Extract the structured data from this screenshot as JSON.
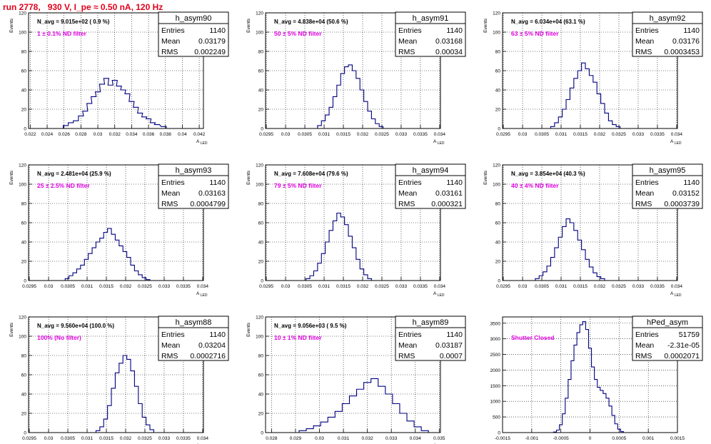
{
  "page_title": "run 2778,   930 V, I_pe ≈ 0.50 nA, 120 Hz",
  "colors": {
    "title": "#e0001b",
    "annotation": "#e000e0",
    "hist_line": "#000080",
    "grid": "#000000",
    "frame": "#000000"
  },
  "stat_labels": {
    "entries": "Entries",
    "mean": "Mean",
    "rms": "RMS"
  },
  "chart_data": [
    {
      "type": "histogram",
      "name": "h_asym90",
      "ylabel": "Events",
      "xlabel": "A_LED",
      "xlim": [
        0.0218,
        0.0425
      ],
      "ylim": [
        0,
        120
      ],
      "grid": true,
      "xticks": [
        "0.022",
        "0.024",
        "0.026",
        "0.028",
        "0.03",
        "0.032",
        "0.034",
        "0.036",
        "0.038",
        "0.04",
        "0.042"
      ],
      "yticks": [
        "0",
        "20",
        "40",
        "60",
        "80",
        "100",
        "120"
      ],
      "navg": "N_avg = 9.015e+02 ( 0.9 %)",
      "filter": "1 ± 0.1% ND filter",
      "stats": {
        "entries": "1140",
        "mean": "0.03179",
        "rms": "0.002249"
      },
      "bins": [
        {
          "x": 0.0262,
          "y": 3
        },
        {
          "x": 0.0268,
          "y": 6
        },
        {
          "x": 0.0274,
          "y": 8
        },
        {
          "x": 0.028,
          "y": 13
        },
        {
          "x": 0.0285,
          "y": 18
        },
        {
          "x": 0.029,
          "y": 26
        },
        {
          "x": 0.0295,
          "y": 33
        },
        {
          "x": 0.03,
          "y": 38
        },
        {
          "x": 0.0305,
          "y": 46
        },
        {
          "x": 0.031,
          "y": 52
        },
        {
          "x": 0.0315,
          "y": 45
        },
        {
          "x": 0.032,
          "y": 50
        },
        {
          "x": 0.0325,
          "y": 44
        },
        {
          "x": 0.033,
          "y": 40
        },
        {
          "x": 0.0335,
          "y": 36
        },
        {
          "x": 0.034,
          "y": 28
        },
        {
          "x": 0.0345,
          "y": 22
        },
        {
          "x": 0.035,
          "y": 16
        },
        {
          "x": 0.0355,
          "y": 12
        },
        {
          "x": 0.036,
          "y": 10
        },
        {
          "x": 0.0365,
          "y": 6
        },
        {
          "x": 0.037,
          "y": 4
        },
        {
          "x": 0.0378,
          "y": 2
        }
      ]
    },
    {
      "type": "histogram",
      "name": "h_asym91",
      "ylabel": "Events",
      "xlabel": "A_LED",
      "xlim": [
        0.02948,
        0.03402
      ],
      "ylim": [
        0,
        120
      ],
      "grid": true,
      "xticks": [
        "0.0295",
        "0.03",
        "0.0305",
        "0.031",
        "0.0315",
        "0.032",
        "0.0325",
        "0.033",
        "0.0335",
        "0.034"
      ],
      "yticks": [
        "0",
        "20",
        "40",
        "60",
        "80",
        "100",
        "120"
      ],
      "navg": "N_avg = 4.838e+04 (50.6 %)",
      "filter": "50 ± 5% ND filter",
      "stats": {
        "entries": "1140",
        "mean": "0.03168",
        "rms": "0.00034"
      },
      "bins": [
        {
          "x": 0.03088,
          "y": 3
        },
        {
          "x": 0.03098,
          "y": 8
        },
        {
          "x": 0.03108,
          "y": 14
        },
        {
          "x": 0.03118,
          "y": 22
        },
        {
          "x": 0.03128,
          "y": 33
        },
        {
          "x": 0.03138,
          "y": 45
        },
        {
          "x": 0.03148,
          "y": 57
        },
        {
          "x": 0.03158,
          "y": 64
        },
        {
          "x": 0.03168,
          "y": 66
        },
        {
          "x": 0.03178,
          "y": 60
        },
        {
          "x": 0.03188,
          "y": 52
        },
        {
          "x": 0.03198,
          "y": 40
        },
        {
          "x": 0.03208,
          "y": 28
        },
        {
          "x": 0.03218,
          "y": 18
        },
        {
          "x": 0.03228,
          "y": 10
        },
        {
          "x": 0.03238,
          "y": 5
        },
        {
          "x": 0.03248,
          "y": 2
        }
      ]
    },
    {
      "type": "histogram",
      "name": "h_asym92",
      "ylabel": "Events",
      "xlabel": "A_LED",
      "xlim": [
        0.02948,
        0.03402
      ],
      "ylim": [
        0,
        120
      ],
      "grid": true,
      "xticks": [
        "0.0295",
        "0.03",
        "0.0305",
        "0.031",
        "0.0315",
        "0.032",
        "0.0325",
        "0.033",
        "0.0335",
        "0.034"
      ],
      "yticks": [
        "0",
        "20",
        "40",
        "60",
        "80",
        "100",
        "120"
      ],
      "navg": "N_avg = 6.034e+04 (63.1 %)",
      "filter": "63 ± 5% ND filter",
      "stats": {
        "entries": "1140",
        "mean": "0.03176",
        "rms": "0.0003453"
      },
      "bins": [
        {
          "x": 0.03078,
          "y": 2
        },
        {
          "x": 0.03088,
          "y": 6
        },
        {
          "x": 0.03098,
          "y": 12
        },
        {
          "x": 0.03108,
          "y": 20
        },
        {
          "x": 0.03118,
          "y": 30
        },
        {
          "x": 0.03128,
          "y": 42
        },
        {
          "x": 0.03138,
          "y": 52
        },
        {
          "x": 0.03148,
          "y": 60
        },
        {
          "x": 0.03158,
          "y": 68
        },
        {
          "x": 0.03168,
          "y": 62
        },
        {
          "x": 0.03178,
          "y": 55
        },
        {
          "x": 0.03188,
          "y": 48
        },
        {
          "x": 0.03198,
          "y": 36
        },
        {
          "x": 0.03208,
          "y": 26
        },
        {
          "x": 0.03218,
          "y": 16
        },
        {
          "x": 0.03228,
          "y": 8
        },
        {
          "x": 0.03238,
          "y": 4
        },
        {
          "x": 0.03248,
          "y": 2
        }
      ]
    },
    {
      "type": "histogram",
      "name": "h_asym93",
      "ylabel": "Events",
      "xlabel": "A_LED",
      "xlim": [
        0.02948,
        0.03402
      ],
      "ylim": [
        0,
        120
      ],
      "grid": true,
      "xticks": [
        "0.0295",
        "0.03",
        "0.0305",
        "0.031",
        "0.0315",
        "0.032",
        "0.0325",
        "0.033",
        "0.0335",
        "0.034"
      ],
      "yticks": [
        "0",
        "20",
        "40",
        "60",
        "80",
        "100",
        "120"
      ],
      "navg": "N_avg = 2.481e+04 (25.9 %)",
      "filter": "25 ± 2.5% ND filter",
      "stats": {
        "entries": "1140",
        "mean": "0.03163",
        "rms": "0.0004799"
      },
      "bins": [
        {
          "x": 0.03048,
          "y": 2
        },
        {
          "x": 0.03058,
          "y": 5
        },
        {
          "x": 0.03068,
          "y": 8
        },
        {
          "x": 0.03078,
          "y": 12
        },
        {
          "x": 0.03088,
          "y": 16
        },
        {
          "x": 0.03098,
          "y": 22
        },
        {
          "x": 0.03108,
          "y": 28
        },
        {
          "x": 0.03118,
          "y": 34
        },
        {
          "x": 0.03128,
          "y": 40
        },
        {
          "x": 0.03138,
          "y": 44
        },
        {
          "x": 0.03148,
          "y": 50
        },
        {
          "x": 0.03158,
          "y": 54
        },
        {
          "x": 0.03168,
          "y": 48
        },
        {
          "x": 0.03178,
          "y": 42
        },
        {
          "x": 0.03188,
          "y": 36
        },
        {
          "x": 0.03198,
          "y": 30
        },
        {
          "x": 0.03208,
          "y": 24
        },
        {
          "x": 0.03218,
          "y": 16
        },
        {
          "x": 0.03228,
          "y": 10
        },
        {
          "x": 0.03238,
          "y": 6
        },
        {
          "x": 0.03248,
          "y": 3
        },
        {
          "x": 0.03258,
          "y": 1
        }
      ]
    },
    {
      "type": "histogram",
      "name": "h_asym94",
      "ylabel": "Events",
      "xlabel": "A_LED",
      "xlim": [
        0.02948,
        0.03402
      ],
      "ylim": [
        0,
        120
      ],
      "grid": true,
      "xticks": [
        "0.0295",
        "0.03",
        "0.0305",
        "0.031",
        "0.0315",
        "0.032",
        "0.0325",
        "0.033",
        "0.0335",
        "0.034"
      ],
      "yticks": [
        "0",
        "20",
        "40",
        "60",
        "80",
        "100",
        "120"
      ],
      "navg": "N_avg = 7.608e+04 (79.6 %)",
      "filter": "79 ± 5% ND filter",
      "stats": {
        "entries": "1140",
        "mean": "0.03161",
        "rms": "0.000321"
      },
      "bins": [
        {
          "x": 0.03058,
          "y": 2
        },
        {
          "x": 0.03068,
          "y": 5
        },
        {
          "x": 0.03078,
          "y": 10
        },
        {
          "x": 0.03088,
          "y": 18
        },
        {
          "x": 0.03098,
          "y": 28
        },
        {
          "x": 0.03108,
          "y": 40
        },
        {
          "x": 0.03118,
          "y": 52
        },
        {
          "x": 0.03128,
          "y": 62
        },
        {
          "x": 0.03138,
          "y": 70
        },
        {
          "x": 0.03148,
          "y": 66
        },
        {
          "x": 0.03158,
          "y": 58
        },
        {
          "x": 0.03168,
          "y": 46
        },
        {
          "x": 0.03178,
          "y": 34
        },
        {
          "x": 0.03188,
          "y": 22
        },
        {
          "x": 0.03198,
          "y": 12
        },
        {
          "x": 0.03208,
          "y": 6
        },
        {
          "x": 0.03218,
          "y": 2
        }
      ]
    },
    {
      "type": "histogram",
      "name": "h_asym95",
      "ylabel": "Events",
      "xlabel": "A_LED",
      "xlim": [
        0.02948,
        0.03402
      ],
      "ylim": [
        0,
        120
      ],
      "grid": true,
      "xticks": [
        "0.0295",
        "0.03",
        "0.0305",
        "0.031",
        "0.0315",
        "0.032",
        "0.0325",
        "0.033",
        "0.0335",
        "0.034"
      ],
      "yticks": [
        "0",
        "20",
        "40",
        "60",
        "80",
        "100",
        "120"
      ],
      "navg": "N_avg = 3.854e+04 (40.3 %)",
      "filter": "40 ± 4% ND filter",
      "stats": {
        "entries": "1140",
        "mean": "0.03152",
        "rms": "0.0003739"
      },
      "bins": [
        {
          "x": 0.03038,
          "y": 2
        },
        {
          "x": 0.03048,
          "y": 5
        },
        {
          "x": 0.03058,
          "y": 9
        },
        {
          "x": 0.03068,
          "y": 15
        },
        {
          "x": 0.03078,
          "y": 24
        },
        {
          "x": 0.03088,
          "y": 34
        },
        {
          "x": 0.03098,
          "y": 45
        },
        {
          "x": 0.03108,
          "y": 56
        },
        {
          "x": 0.03118,
          "y": 64
        },
        {
          "x": 0.03128,
          "y": 60
        },
        {
          "x": 0.03138,
          "y": 52
        },
        {
          "x": 0.03148,
          "y": 42
        },
        {
          "x": 0.03158,
          "y": 32
        },
        {
          "x": 0.03168,
          "y": 22
        },
        {
          "x": 0.03178,
          "y": 14
        },
        {
          "x": 0.03188,
          "y": 8
        },
        {
          "x": 0.03198,
          "y": 4
        },
        {
          "x": 0.03208,
          "y": 2
        }
      ]
    },
    {
      "type": "histogram",
      "name": "h_asym88",
      "ylabel": "Events",
      "xlabel": "A_LED",
      "xlim": [
        0.02948,
        0.03402
      ],
      "ylim": [
        0,
        120
      ],
      "grid": true,
      "xticks": [
        "0.0295",
        "0.03",
        "0.0305",
        "0.031",
        "0.0315",
        "0.032",
        "0.0325",
        "0.033",
        "0.0335",
        "0.034"
      ],
      "yticks": [
        "0",
        "20",
        "40",
        "60",
        "80",
        "100",
        "120"
      ],
      "navg": "N_avg = 9.560e+04 (100.0 %)",
      "filter": "100% (No filter)",
      "stats": {
        "entries": "1140",
        "mean": "0.03204",
        "rms": "0.0002716"
      },
      "bins": [
        {
          "x": 0.03128,
          "y": 2
        },
        {
          "x": 0.03138,
          "y": 6
        },
        {
          "x": 0.03148,
          "y": 14
        },
        {
          "x": 0.03158,
          "y": 28
        },
        {
          "x": 0.03168,
          "y": 46
        },
        {
          "x": 0.03178,
          "y": 62
        },
        {
          "x": 0.03188,
          "y": 72
        },
        {
          "x": 0.03198,
          "y": 80
        },
        {
          "x": 0.03208,
          "y": 76
        },
        {
          "x": 0.03218,
          "y": 64
        },
        {
          "x": 0.03228,
          "y": 48
        },
        {
          "x": 0.03238,
          "y": 30
        },
        {
          "x": 0.03248,
          "y": 16
        },
        {
          "x": 0.03258,
          "y": 8
        },
        {
          "x": 0.03268,
          "y": 3
        }
      ]
    },
    {
      "type": "histogram",
      "name": "h_asym89",
      "ylabel": "Events",
      "xlabel": "A_LED",
      "xlim": [
        0.02775,
        0.03505
      ],
      "ylim": [
        0,
        120
      ],
      "grid": true,
      "xticks": [
        "0.028",
        "0.029",
        "0.03",
        "0.031",
        "0.032",
        "0.033",
        "0.034",
        "0.035"
      ],
      "yticks": [
        "0",
        "20",
        "40",
        "60",
        "80",
        "100",
        "120"
      ],
      "navg": "N_avg = 9.056e+03 ( 9.5 %)",
      "filter": "10 ± 1% ND filter",
      "stats": {
        "entries": "1140",
        "mean": "0.03187",
        "rms": "0.0007"
      },
      "bins": [
        {
          "x": 0.0293,
          "y": 2
        },
        {
          "x": 0.0296,
          "y": 4
        },
        {
          "x": 0.0299,
          "y": 7
        },
        {
          "x": 0.0302,
          "y": 11
        },
        {
          "x": 0.0305,
          "y": 16
        },
        {
          "x": 0.0308,
          "y": 22
        },
        {
          "x": 0.0311,
          "y": 30
        },
        {
          "x": 0.0314,
          "y": 38
        },
        {
          "x": 0.0317,
          "y": 45
        },
        {
          "x": 0.032,
          "y": 52
        },
        {
          "x": 0.0323,
          "y": 56
        },
        {
          "x": 0.0326,
          "y": 48
        },
        {
          "x": 0.0329,
          "y": 40
        },
        {
          "x": 0.0332,
          "y": 30
        },
        {
          "x": 0.0335,
          "y": 20
        },
        {
          "x": 0.0338,
          "y": 12
        },
        {
          "x": 0.0341,
          "y": 6
        },
        {
          "x": 0.0344,
          "y": 2
        }
      ]
    },
    {
      "type": "histogram",
      "name": "hPed_asym",
      "ylabel": "",
      "xlabel": "",
      "xlim": [
        -0.0015,
        0.0015
      ],
      "ylim": [
        0,
        3700
      ],
      "grid": true,
      "xticks": [
        "-0.0015",
        "-0.001",
        "-0.0005",
        "0",
        "0.0005",
        "0.001",
        "0.0015"
      ],
      "yticks": [
        "0",
        "500",
        "1000",
        "1500",
        "2000",
        "2500",
        "3000",
        "3500"
      ],
      "navg": "",
      "filter": "Shutter Closed",
      "stats": {
        "entries": "51759",
        "mean": "-2.31e-05",
        "rms": "0.0002071"
      },
      "bins": [
        {
          "x": -0.0006,
          "y": 20
        },
        {
          "x": -0.00055,
          "y": 80
        },
        {
          "x": -0.0005,
          "y": 250
        },
        {
          "x": -0.00045,
          "y": 600
        },
        {
          "x": -0.0004,
          "y": 1100
        },
        {
          "x": -0.00035,
          "y": 1700
        },
        {
          "x": -0.0003,
          "y": 2300
        },
        {
          "x": -0.00025,
          "y": 2800
        },
        {
          "x": -0.0002,
          "y": 3200
        },
        {
          "x": -0.00015,
          "y": 3450
        },
        {
          "x": -0.0001,
          "y": 3550
        },
        {
          "x": -5e-05,
          "y": 3300
        },
        {
          "x": 0.0,
          "y": 2700
        },
        {
          "x": 5e-05,
          "y": 2100
        },
        {
          "x": 0.0001,
          "y": 1700
        },
        {
          "x": 0.00015,
          "y": 1450
        },
        {
          "x": 0.0002,
          "y": 1350
        },
        {
          "x": 0.00025,
          "y": 1250
        },
        {
          "x": 0.0003,
          "y": 1100
        },
        {
          "x": 0.00035,
          "y": 850
        },
        {
          "x": 0.0004,
          "y": 550
        },
        {
          "x": 0.00045,
          "y": 280
        },
        {
          "x": 0.0005,
          "y": 110
        },
        {
          "x": 0.00055,
          "y": 30
        }
      ]
    }
  ]
}
